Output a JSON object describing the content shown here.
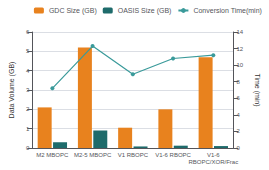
{
  "chart_data": {
    "type": "bar",
    "categories": [
      "M2 MBOPC",
      "M2-5 MBOPC",
      "V1 RBOPC",
      "V1-6 RBOPC",
      "V1-6\nRBOPC/XOR/Frac"
    ],
    "series": [
      {
        "name": "GDC Size (GB)",
        "type": "bar",
        "color": "#e8821e",
        "values": [
          2.1,
          5.2,
          1.05,
          2.0,
          4.7
        ]
      },
      {
        "name": "OASIS Size (GB)",
        "type": "bar",
        "color": "#1e6b6b",
        "values": [
          0.3,
          0.9,
          0.08,
          0.12,
          0.1
        ]
      },
      {
        "name": "Conversion Time(min)",
        "type": "line",
        "color": "#3a9a9a",
        "marker": "circle",
        "axis": "y2",
        "values": [
          7.2,
          12.3,
          8.9,
          10.8,
          11.2
        ]
      }
    ],
    "ylabel": "Data Volume (GB)",
    "y2label": "Time (min)",
    "ylim": [
      0,
      6
    ],
    "yticks": [
      0,
      1,
      2,
      3,
      4,
      5,
      6
    ],
    "y2lim": [
      0,
      14
    ],
    "y2ticks": [
      0,
      2,
      4,
      6,
      8,
      10,
      12,
      14
    ],
    "grid": true,
    "legend": "upper right"
  }
}
